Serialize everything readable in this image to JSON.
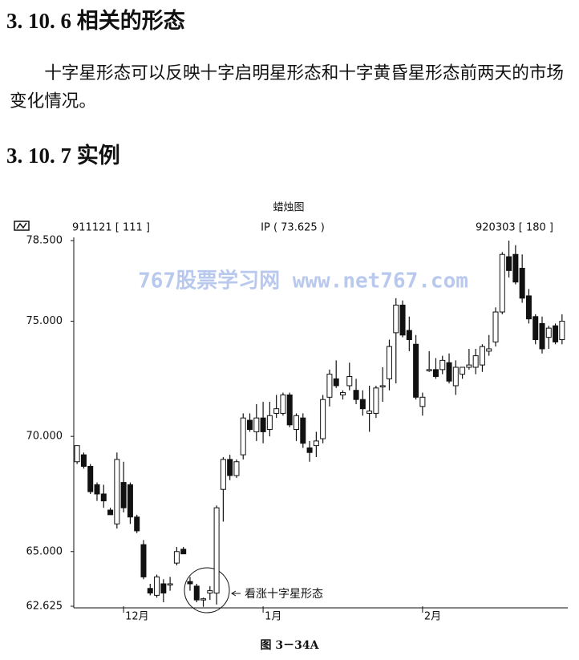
{
  "heading_1": "3. 10. 6 相关的形态",
  "paragraph": "十字星形态可以反映十字启明星形态和十字黄昏星形态前两天的市场变化情况。",
  "heading_2": "3. 10. 7 实例",
  "chart_data": {
    "type": "candlestick",
    "title": "蜡烛图",
    "left_label": "911121 [ 111 ]",
    "center_label": "IP ( 73.625 )",
    "right_label": "920303 [ 180 ]",
    "watermark": "767股票学习网 www.net767.com",
    "annotation": "看涨十字星形态",
    "categories": [
      null,
      null,
      null,
      null,
      null,
      null,
      null,
      "12月",
      null,
      null,
      null,
      null,
      null,
      null,
      null,
      null,
      null,
      null,
      null,
      null,
      null,
      null,
      null,
      null,
      null,
      null,
      null,
      null,
      "1月",
      null,
      null,
      null,
      null,
      null,
      null,
      null,
      null,
      null,
      null,
      null,
      null,
      null,
      null,
      null,
      null,
      null,
      null,
      null,
      null,
      null,
      null,
      null,
      "2月",
      null,
      null,
      null,
      null,
      null,
      null,
      null,
      null,
      null,
      null,
      null,
      null,
      null,
      null,
      null,
      null,
      null,
      null,
      null,
      null,
      null
    ],
    "open": [
      68.9,
      69.2,
      68.7,
      67.9,
      67.5,
      66.8,
      66.2,
      68.0,
      67.9,
      66.5,
      65.3,
      63.4,
      63.1,
      63.6,
      63.6,
      64.5,
      65.1,
      63.7,
      63.5,
      62.9,
      63.2,
      63.2,
      67.7,
      69.0,
      68.3,
      69.2,
      70.7,
      70.2,
      70.8,
      70.3,
      71.0,
      71.0,
      71.8,
      70.3,
      70.8,
      69.5,
      69.6,
      69.9,
      71.7,
      72.5,
      71.8,
      72.2,
      72.0,
      71.6,
      71.0,
      71.0,
      72.2,
      72.5,
      74.5,
      75.7,
      74.6,
      74.0,
      71.3,
      72.9,
      72.9,
      72.9,
      73.2,
      72.2,
      72.7,
      73.0,
      73.0,
      73.1,
      73.7,
      74.1,
      75.4,
      77.8,
      77.9,
      77.3,
      76.1,
      75.2,
      74.9,
      74.3,
      74.8,
      74.2
    ],
    "high": [
      69.6,
      69.3,
      68.8,
      68.0,
      67.9,
      66.9,
      69.3,
      68.9,
      68.0,
      66.6,
      65.5,
      63.6,
      64.0,
      63.8,
      63.9,
      65.2,
      65.2,
      63.9,
      63.6,
      63.0,
      63.5,
      67.0,
      69.1,
      69.2,
      69.0,
      71.0,
      71.0,
      71.4,
      71.5,
      71.5,
      71.8,
      71.9,
      71.9,
      71.0,
      71.0,
      69.8,
      70.2,
      71.8,
      72.9,
      73.3,
      72.0,
      73.2,
      72.5,
      72.0,
      72.2,
      72.2,
      73.0,
      74.2,
      76.0,
      75.9,
      75.2,
      74.4,
      71.9,
      73.7,
      73.4,
      73.5,
      73.6,
      73.3,
      73.0,
      73.8,
      73.8,
      74.0,
      74.4,
      75.6,
      78.0,
      78.5,
      78.3,
      77.9,
      76.4,
      75.3,
      75.2,
      74.8,
      74.9,
      75.3
    ],
    "low": [
      68.8,
      68.6,
      67.5,
      67.2,
      66.9,
      66.6,
      66.0,
      66.7,
      66.2,
      65.8,
      63.8,
      63.1,
      63.0,
      62.8,
      63.3,
      64.4,
      64.9,
      63.3,
      62.8,
      62.6,
      62.9,
      62.7,
      66.3,
      68.1,
      68.2,
      69.0,
      70.2,
      69.8,
      69.7,
      70.0,
      70.8,
      70.9,
      70.4,
      69.8,
      69.5,
      68.9,
      69.1,
      69.7,
      71.3,
      72.1,
      71.6,
      72.0,
      71.4,
      70.9,
      70.2,
      70.8,
      71.5,
      72.0,
      72.3,
      74.3,
      73.7,
      71.6,
      70.9,
      72.8,
      72.5,
      72.7,
      72.3,
      71.8,
      72.5,
      72.9,
      72.7,
      72.8,
      73.5,
      73.9,
      75.3,
      76.9,
      76.6,
      75.8,
      74.9,
      74.0,
      73.6,
      73.8,
      74.0,
      74.0
    ],
    "close": [
      69.6,
      68.7,
      67.6,
      67.5,
      67.2,
      66.6,
      69.0,
      66.9,
      66.5,
      65.9,
      63.9,
      63.2,
      63.9,
      63.2,
      63.6,
      65.0,
      64.9,
      63.6,
      62.9,
      62.95,
      63.3,
      66.9,
      69.0,
      68.3,
      68.9,
      70.8,
      70.3,
      70.8,
      70.2,
      70.9,
      71.2,
      71.8,
      70.5,
      70.9,
      69.7,
      69.3,
      69.8,
      71.6,
      72.7,
      72.2,
      71.9,
      72.6,
      71.6,
      71.2,
      71.1,
      72.1,
      72.2,
      73.9,
      75.7,
      74.4,
      74.2,
      71.7,
      71.7,
      72.9,
      72.6,
      73.3,
      72.4,
      73.0,
      73.0,
      73.1,
      73.5,
      73.9,
      73.8,
      75.4,
      77.9,
      77.2,
      76.7,
      76.0,
      75.1,
      74.2,
      73.8,
      74.7,
      74.1,
      75.0
    ],
    "ylim": [
      62.625,
      78.5
    ],
    "yticks": [
      {
        "value": 62.625,
        "label": "62.625"
      },
      {
        "value": 65,
        "label": "65.000"
      },
      {
        "value": 70,
        "label": "70.000"
      },
      {
        "value": 75,
        "label": "75.000"
      },
      {
        "value": 78.5,
        "label": "78.500"
      }
    ]
  },
  "caption": "图 3－34A"
}
